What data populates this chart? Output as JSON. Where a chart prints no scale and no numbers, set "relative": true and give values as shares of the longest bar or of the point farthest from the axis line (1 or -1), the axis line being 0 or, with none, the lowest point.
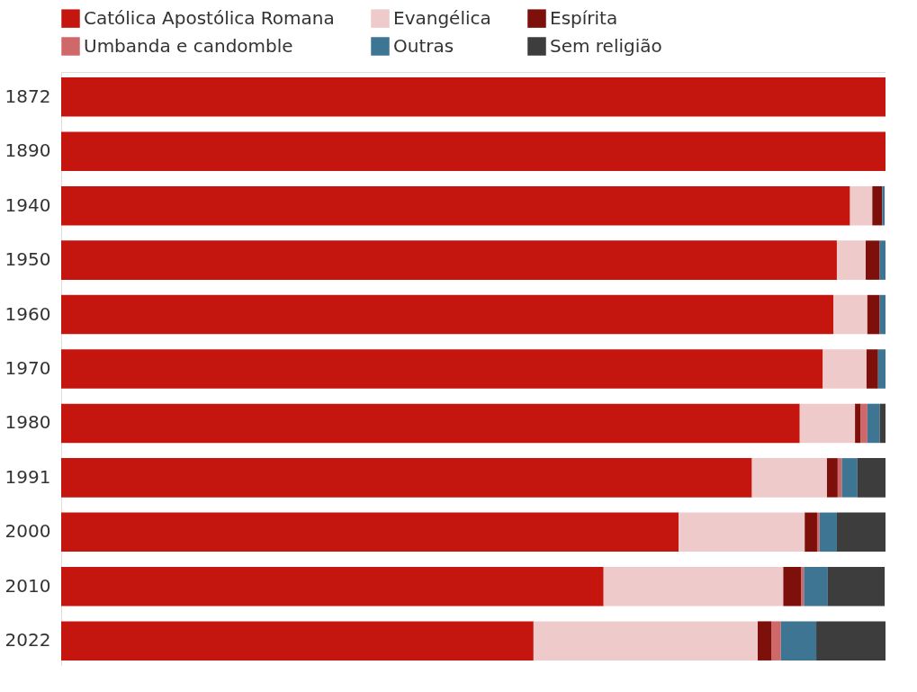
{
  "chart_data": {
    "type": "bar",
    "orientation": "horizontal",
    "stacked": true,
    "relative": true,
    "legend": "top",
    "categories": [
      "1872",
      "1890",
      "1940",
      "1950",
      "1960",
      "1970",
      "1980",
      "1991",
      "2000",
      "2010",
      "2022"
    ],
    "series": [
      {
        "name": "Católica Apostólica Romana",
        "color": "#c4160e",
        "values": [
          1,
          1,
          0.957,
          0.941,
          0.937,
          0.924,
          0.896,
          0.838,
          0.749,
          0.658,
          0.573
        ]
      },
      {
        "name": "Evangélica",
        "color": "#efcaca",
        "values": [
          null,
          null,
          0.027,
          0.035,
          0.041,
          0.053,
          0.067,
          0.091,
          0.153,
          0.218,
          0.272
        ]
      },
      {
        "name": "Espírita",
        "color": "#7e100c",
        "values": [
          null,
          null,
          0.012,
          0.017,
          0.015,
          0.014,
          0.007,
          0.013,
          0.015,
          0.022,
          0.017
        ]
      },
      {
        "name": "Umbanda e candomble",
        "color": "#d0686a",
        "values": [
          null,
          null,
          null,
          null,
          null,
          null,
          0.008,
          0.005,
          0.003,
          0.003,
          0.011
        ]
      },
      {
        "name": "Outras",
        "color": "#3d7592",
        "values": [
          null,
          null,
          0.003,
          0.007,
          0.007,
          0.009,
          0.015,
          0.019,
          0.021,
          0.029,
          0.043
        ]
      },
      {
        "name": "Sem religião",
        "color": "#3d3d3d",
        "values": [
          null,
          null,
          null,
          null,
          null,
          null,
          0.007,
          0.034,
          0.059,
          0.069,
          0.084
        ]
      }
    ]
  }
}
